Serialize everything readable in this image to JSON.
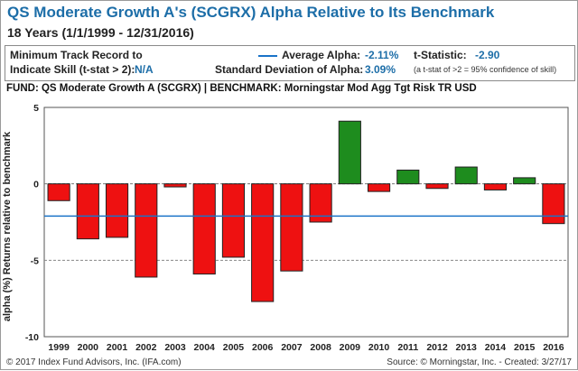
{
  "header": {
    "title": "QS Moderate Growth A's (SCGRX) Alpha Relative to Its Benchmark",
    "subtitle": "18 Years (1/1/1999 - 12/31/2016)"
  },
  "stats": {
    "min_track_label_1": "Minimum Track Record to",
    "min_track_label_2": "Indicate Skill (t-stat > 2):",
    "min_track_value": "N/A",
    "avg_alpha_label": "Average Alpha:",
    "avg_alpha_value": "-2.11%",
    "tstat_label": "t-Statistic:",
    "tstat_value": "-2.90",
    "std_label": "Standard Deviation of Alpha:",
    "std_value": "3.09%",
    "tstat_note": "(a t-stat of >2 = 95% confidence of skill)"
  },
  "fund_line": "FUND: QS Moderate Growth A (SCGRX)  | BENCHMARK: Morningstar Mod Agg Tgt Risk TR USD",
  "footer": {
    "left": "© 2017 Index Fund Advisors, Inc. (IFA.com)",
    "right": "Source: © Morningstar, Inc. - Created: 3/27/17"
  },
  "colors": {
    "positive": "#1e8c1e",
    "negative": "#ee1111",
    "average_line": "#1a73c8",
    "title": "#1d6ea8"
  },
  "chart_data": {
    "type": "bar",
    "ylabel": "alpha (%) Returns relative to benchmark",
    "ylim": [
      -10,
      5
    ],
    "yticks": [
      "5",
      "0",
      "-5",
      "-10"
    ],
    "categories": [
      "1999",
      "2000",
      "2001",
      "2002",
      "2003",
      "2004",
      "2005",
      "2006",
      "2007",
      "2008",
      "2009",
      "2010",
      "2011",
      "2012",
      "2013",
      "2014",
      "2015",
      "2016"
    ],
    "values": [
      -1.1,
      -3.6,
      -3.5,
      -6.1,
      -0.2,
      -5.9,
      -4.8,
      -7.7,
      -5.7,
      -2.5,
      4.1,
      -0.5,
      0.9,
      -0.3,
      1.1,
      -0.4,
      0.4,
      -2.6
    ],
    "average_alpha": -2.11,
    "dashed_reference": -5,
    "grid": false
  }
}
